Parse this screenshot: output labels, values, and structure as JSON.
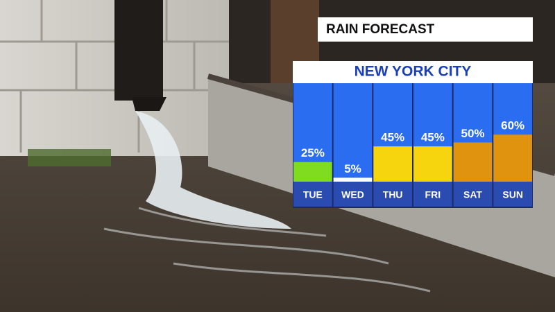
{
  "chart_data": {
    "type": "bar",
    "title": "RAIN FORECAST",
    "subtitle": "NEW YORK CITY",
    "categories": [
      "TUE",
      "WED",
      "THU",
      "FRI",
      "SAT",
      "SUN"
    ],
    "values": [
      25,
      5,
      45,
      45,
      50,
      60
    ],
    "value_labels": [
      "25%",
      "5%",
      "45%",
      "45%",
      "50%",
      "60%"
    ],
    "colors": [
      "#7fdc1e",
      "#ffffff",
      "#f6d40e",
      "#f6d40e",
      "#e0930f",
      "#e0930f"
    ]
  }
}
